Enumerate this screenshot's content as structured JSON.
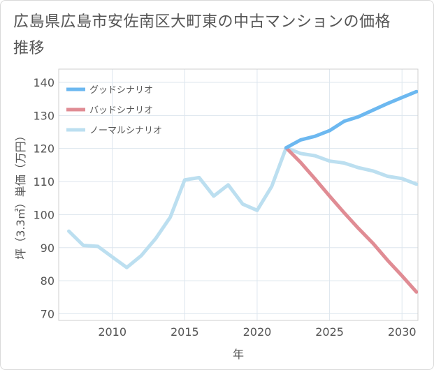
{
  "title": "広島県広島市安佐南区大町東の中古マンションの価格推移",
  "chart_data": {
    "type": "line",
    "title": "広島県広島市安佐南区大町東の中古マンションの価格推移",
    "xlabel": "年",
    "ylabel": "坪（3.3㎡）単価（万円）",
    "xlim": [
      2006.3,
      2031.1
    ],
    "ylim": [
      68,
      144
    ],
    "xticks": [
      2010,
      2015,
      2020,
      2025,
      2030
    ],
    "yticks": [
      70,
      80,
      90,
      100,
      110,
      120,
      130,
      140
    ],
    "grid": true,
    "legend_position": "top-left",
    "series": [
      {
        "name": "グッドシナリオ",
        "color": "#6cb8f0",
        "x": [
          2022,
          2023,
          2024,
          2025,
          2026,
          2027,
          2028,
          2029,
          2030,
          2031
        ],
        "y": [
          120.2,
          122.6,
          123.7,
          125.4,
          128.2,
          129.6,
          131.6,
          133.6,
          135.4,
          137.2
        ]
      },
      {
        "name": "バッドシナリオ",
        "color": "#e08c94",
        "x": [
          2022,
          2023,
          2024,
          2025,
          2026,
          2027,
          2028,
          2029,
          2030,
          2031
        ],
        "y": [
          120.2,
          115.8,
          110.8,
          105.6,
          100.6,
          95.8,
          91.3,
          86.2,
          81.5,
          76.6
        ]
      },
      {
        "name": "ノーマルシナリオ",
        "color": "#bcdff0",
        "x": [
          2007,
          2008,
          2009,
          2010,
          2011,
          2012,
          2013,
          2014,
          2015,
          2016,
          2017,
          2018,
          2019,
          2020,
          2021,
          2022,
          2023,
          2024,
          2025,
          2026,
          2027,
          2028,
          2029,
          2030,
          2031
        ],
        "y": [
          95.0,
          90.7,
          90.4,
          87.2,
          84.0,
          87.6,
          92.8,
          99.2,
          110.5,
          111.2,
          105.6,
          109.0,
          103.2,
          101.3,
          108.5,
          120.2,
          118.5,
          117.8,
          116.2,
          115.6,
          114.2,
          113.2,
          111.6,
          110.9,
          109.2
        ]
      }
    ]
  }
}
